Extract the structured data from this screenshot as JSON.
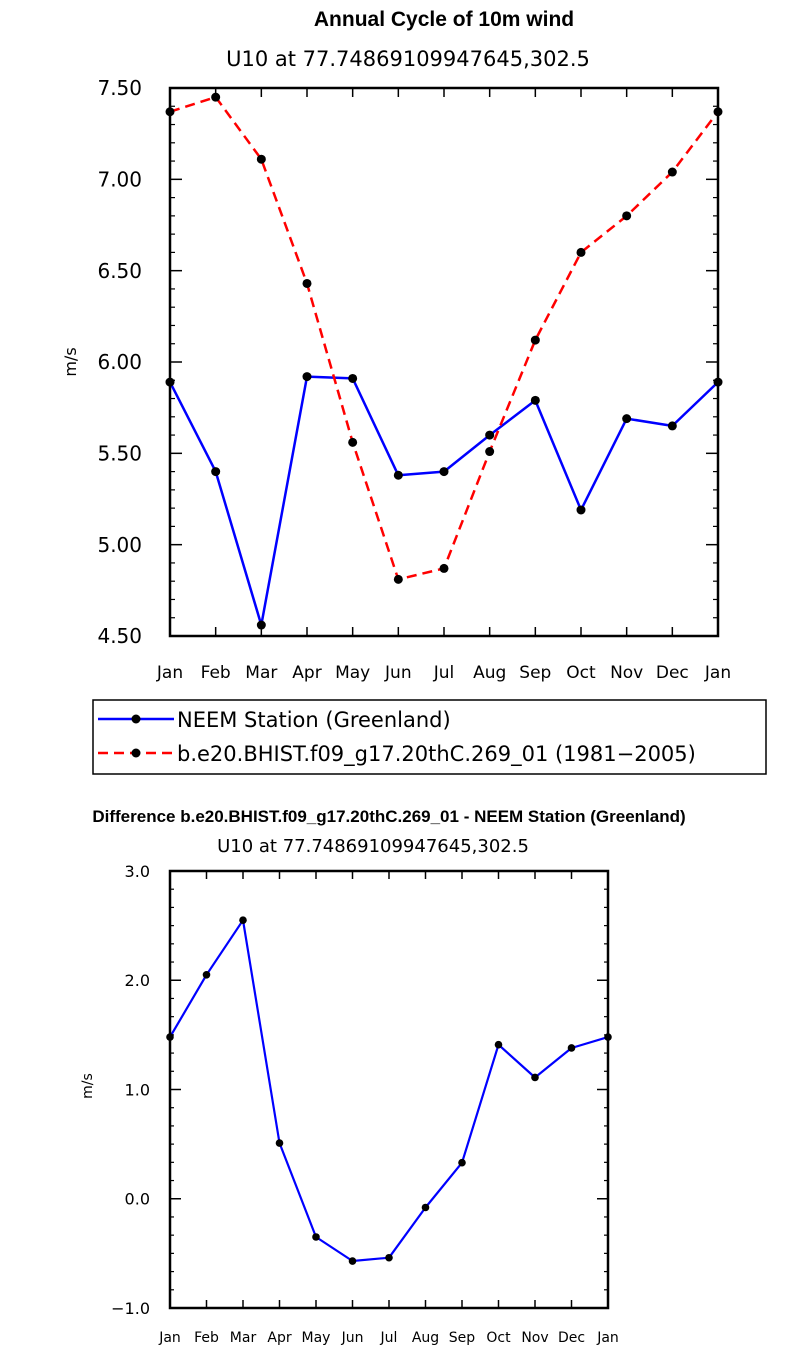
{
  "chart_data": [
    {
      "type": "line",
      "title": "Annual Cycle of 10m wind",
      "subtitle": "U10 at 77.74869109947645,302.5",
      "xlabel": "",
      "ylabel": "m/s",
      "categories": [
        "Jan",
        "Feb",
        "Mar",
        "Apr",
        "May",
        "Jun",
        "Jul",
        "Aug",
        "Sep",
        "Oct",
        "Nov",
        "Dec",
        "Jan"
      ],
      "ylim": [
        4.5,
        7.5
      ],
      "yticks": [
        4.5,
        5.0,
        5.5,
        6.0,
        6.5,
        7.0,
        7.5
      ],
      "ytick_labels": [
        "4.50",
        "5.00",
        "5.50",
        "6.00",
        "6.50",
        "7.00",
        "7.50"
      ],
      "series": [
        {
          "name": "NEEM Station (Greenland)",
          "color": "#0000ff",
          "dash": "solid",
          "values": [
            5.89,
            5.4,
            4.56,
            5.92,
            5.91,
            5.38,
            5.4,
            5.6,
            5.79,
            5.19,
            5.69,
            5.65,
            5.89
          ]
        },
        {
          "name": "b.e20.BHIST.f09_g17.20thC.269_01 (1981−2005)",
          "color": "#ff0000",
          "dash": "dashed",
          "values": [
            7.37,
            7.45,
            7.11,
            6.43,
            5.56,
            4.81,
            4.87,
            5.51,
            6.12,
            6.6,
            6.8,
            7.04,
            7.37
          ]
        }
      ],
      "legend_position": "bottom"
    },
    {
      "type": "line",
      "title": "Difference b.e20.BHIST.f09_g17.20thC.269_01 - NEEM Station (Greenland)",
      "subtitle": "U10 at 77.74869109947645,302.5",
      "xlabel": "",
      "ylabel": "m/s",
      "categories": [
        "Jan",
        "Feb",
        "Mar",
        "Apr",
        "May",
        "Jun",
        "Jul",
        "Aug",
        "Sep",
        "Oct",
        "Nov",
        "Dec",
        "Jan"
      ],
      "ylim": [
        -1.0,
        3.0
      ],
      "yticks": [
        -1.0,
        0.0,
        1.0,
        2.0,
        3.0
      ],
      "ytick_labels": [
        "−1.0",
        "0.0",
        "1.0",
        "2.0",
        "3.0"
      ],
      "series": [
        {
          "color": "#0000ff",
          "dash": "solid",
          "values": [
            1.48,
            2.05,
            2.55,
            0.51,
            -0.35,
            -0.57,
            -0.54,
            -0.08,
            0.33,
            1.41,
            1.11,
            1.38,
            1.48
          ]
        }
      ]
    }
  ]
}
